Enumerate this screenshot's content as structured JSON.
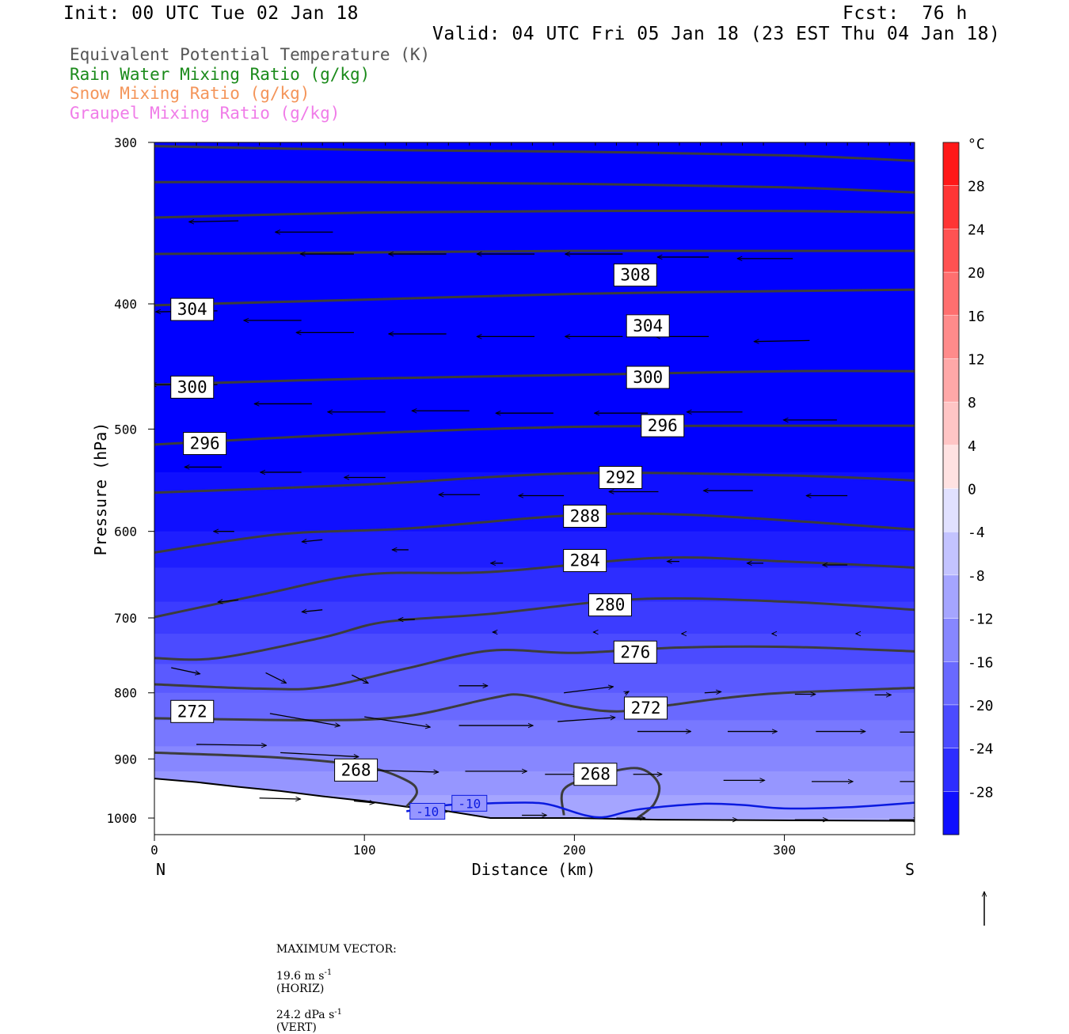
{
  "header": {
    "init": "Init: 00 UTC Tue 02 Jan 18",
    "fcst": "Fcst:  76 h",
    "valid": "Valid: 04 UTC Fri 05 Jan 18 (23 EST Thu 04 Jan 18)"
  },
  "legend_lines": [
    {
      "text": "Equivalent Potential Temperature (K)",
      "color": "#555555"
    },
    {
      "text": "Rain Water Mixing Ratio (g/kg)",
      "color": "#1a8a1a"
    },
    {
      "text": "Snow Mixing Ratio (g/kg)",
      "color": "#f4955a"
    },
    {
      "text": "Graupel Mixing Ratio (g/kg)",
      "color": "#f07ce8"
    }
  ],
  "footer": {
    "max_label": "MAXIMUM VECTOR:",
    "horiz": "19.6 m s",
    "horiz_tag": "(HORIZ)",
    "vert": "24.2 dPa s",
    "vert_tag": "(VERT)",
    "exp": "-1"
  },
  "chart_data": {
    "type": "heatmap",
    "xlabel": "Distance (km)",
    "ylabel": "Pressure (hPa)",
    "xlim": [
      0,
      362
    ],
    "ylim": [
      1030,
      300
    ],
    "y_scale": "log",
    "x_ticks": [
      0,
      100,
      200,
      300
    ],
    "y_ticks": [
      300,
      400,
      500,
      600,
      700,
      800,
      900,
      1000
    ],
    "x_end_labels": {
      "left": "N",
      "right": "S"
    },
    "colorbar": {
      "unit": "°C",
      "min": -32,
      "max": 32,
      "step": 4,
      "tick_values": [
        28,
        24,
        20,
        16,
        12,
        8,
        4,
        0,
        -4,
        -8,
        -12,
        -16,
        -20,
        -24,
        -28
      ]
    },
    "temperature_fill": [
      {
        "p": 300,
        "t": -32
      },
      {
        "p": 500,
        "t": -32
      },
      {
        "p": 540,
        "t": -30
      },
      {
        "p": 600,
        "t": -28
      },
      {
        "p": 640,
        "t": -26
      },
      {
        "p": 680,
        "t": -24
      },
      {
        "p": 720,
        "t": -22
      },
      {
        "p": 760,
        "t": -20
      },
      {
        "p": 800,
        "t": -18
      },
      {
        "p": 840,
        "t": -16
      },
      {
        "p": 880,
        "t": -14
      },
      {
        "p": 920,
        "t": -12
      },
      {
        "p": 960,
        "t": -10
      },
      {
        "p": 1000,
        "t": -9
      }
    ],
    "theta_e_contours": [
      {
        "level": 312,
        "points": [
          [
            0,
            302
          ],
          [
            100,
            304
          ],
          [
            200,
            305
          ],
          [
            300,
            307
          ],
          [
            362,
            310
          ]
        ]
      },
      {
        "level": 310,
        "points": [
          [
            0,
            322
          ],
          [
            100,
            322
          ],
          [
            200,
            323
          ],
          [
            300,
            325
          ],
          [
            362,
            328
          ]
        ]
      },
      {
        "level": 308,
        "points": [
          [
            0,
            343
          ],
          [
            100,
            340
          ],
          [
            200,
            339
          ],
          [
            300,
            339
          ],
          [
            362,
            340
          ]
        ]
      },
      {
        "level": 306,
        "points": [
          [
            0,
            366
          ],
          [
            100,
            365
          ],
          [
            200,
            364
          ],
          [
            300,
            364
          ],
          [
            362,
            364
          ]
        ]
      },
      {
        "level": 304,
        "points": [
          [
            0,
            401
          ],
          [
            100,
            397
          ],
          [
            200,
            393
          ],
          [
            300,
            391
          ],
          [
            362,
            390
          ]
        ]
      },
      {
        "level": 300,
        "points": [
          [
            0,
            462
          ],
          [
            100,
            457
          ],
          [
            200,
            454
          ],
          [
            300,
            451
          ],
          [
            362,
            451
          ]
        ]
      },
      {
        "level": 296,
        "points": [
          [
            0,
            514
          ],
          [
            100,
            504
          ],
          [
            200,
            498
          ],
          [
            300,
            497
          ],
          [
            362,
            497
          ]
        ]
      },
      {
        "level": 292,
        "points": [
          [
            0,
            560
          ],
          [
            100,
            552
          ],
          [
            200,
            541
          ],
          [
            300,
            543
          ],
          [
            362,
            548
          ]
        ]
      },
      {
        "level": 288,
        "points": [
          [
            0,
            623
          ],
          [
            60,
            603
          ],
          [
            120,
            597
          ],
          [
            200,
            583
          ],
          [
            260,
            583
          ],
          [
            362,
            598
          ]
        ]
      },
      {
        "level": 284,
        "points": [
          [
            0,
            699
          ],
          [
            50,
            672
          ],
          [
            100,
            648
          ],
          [
            160,
            645
          ],
          [
            240,
            629
          ],
          [
            300,
            633
          ],
          [
            362,
            640
          ]
        ]
      },
      {
        "level": 280,
        "points": [
          [
            0,
            752
          ],
          [
            30,
            752
          ],
          [
            80,
            725
          ],
          [
            110,
            705
          ],
          [
            160,
            695
          ],
          [
            230,
            677
          ],
          [
            300,
            680
          ],
          [
            362,
            690
          ]
        ]
      },
      {
        "level": 276,
        "points": [
          [
            0,
            788
          ],
          [
            50,
            794
          ],
          [
            80,
            792
          ],
          [
            120,
            766
          ],
          [
            160,
            742
          ],
          [
            200,
            745
          ],
          [
            250,
            738
          ],
          [
            300,
            737
          ],
          [
            362,
            743
          ]
        ]
      },
      {
        "level": 272,
        "points": [
          [
            0,
            837
          ],
          [
            80,
            840
          ],
          [
            120,
            834
          ],
          [
            160,
            808
          ],
          [
            175,
            803
          ],
          [
            200,
            820
          ],
          [
            220,
            827
          ],
          [
            240,
            820
          ],
          [
            270,
            808
          ],
          [
            300,
            800
          ],
          [
            362,
            793
          ]
        ]
      },
      {
        "level": 268,
        "points": [
          [
            0,
            890
          ],
          [
            60,
            898
          ],
          [
            100,
            912
          ],
          [
            120,
            935
          ],
          [
            125,
            955
          ],
          [
            120,
            980
          ]
        ]
      },
      {
        "level": 268,
        "points": [
          [
            195,
            995
          ],
          [
            195,
            950
          ],
          [
            210,
            928
          ],
          [
            230,
            915
          ],
          [
            240,
            940
          ],
          [
            238,
            975
          ],
          [
            230,
            1000
          ]
        ]
      }
    ],
    "contour_labels": [
      {
        "text": "308",
        "x": 229,
        "p": 380
      },
      {
        "text": "304",
        "x": 18,
        "p": 404
      },
      {
        "text": "304",
        "x": 235,
        "p": 416
      },
      {
        "text": "300",
        "x": 18,
        "p": 464
      },
      {
        "text": "300",
        "x": 235,
        "p": 456
      },
      {
        "text": "296",
        "x": 24,
        "p": 513
      },
      {
        "text": "296",
        "x": 242,
        "p": 497
      },
      {
        "text": "292",
        "x": 222,
        "p": 545
      },
      {
        "text": "288",
        "x": 205,
        "p": 584
      },
      {
        "text": "284",
        "x": 205,
        "p": 632
      },
      {
        "text": "280",
        "x": 217,
        "p": 684
      },
      {
        "text": "276",
        "x": 229,
        "p": 744
      },
      {
        "text": "272",
        "x": 18,
        "p": 827
      },
      {
        "text": "272",
        "x": 234,
        "p": 822
      },
      {
        "text": "268",
        "x": 96,
        "p": 918
      },
      {
        "text": "268",
        "x": 210,
        "p": 925
      }
    ],
    "isotherm": {
      "level": -10,
      "points": [
        [
          120,
          988
        ],
        [
          140,
          977
        ],
        [
          160,
          974
        ],
        [
          180,
          973
        ],
        [
          190,
          978
        ],
        [
          205,
          995
        ],
        [
          215,
          998
        ],
        [
          230,
          985
        ],
        [
          260,
          975
        ],
        [
          280,
          977
        ],
        [
          300,
          983
        ],
        [
          330,
          981
        ],
        [
          362,
          973
        ]
      ],
      "labels": [
        {
          "text": "-10",
          "x": 130,
          "p": 988
        },
        {
          "text": "-10",
          "x": 150,
          "p": 974
        }
      ]
    },
    "terrain_surface": [
      [
        0,
        932
      ],
      [
        20,
        938
      ],
      [
        40,
        946
      ],
      [
        60,
        953
      ],
      [
        80,
        962
      ],
      [
        100,
        970
      ],
      [
        120,
        980
      ],
      [
        140,
        988
      ],
      [
        160,
        1000
      ],
      [
        200,
        1000
      ],
      [
        240,
        1003
      ],
      [
        300,
        1004
      ],
      [
        362,
        1005
      ]
    ],
    "wind_vectors": [
      {
        "x": 40,
        "p": 345,
        "u": -24,
        "v": 0.5
      },
      {
        "x": 85,
        "p": 352,
        "u": -28,
        "v": 0
      },
      {
        "x": 95,
        "p": 366,
        "u": -26,
        "v": 0
      },
      {
        "x": 139,
        "p": 366,
        "u": -28,
        "v": 0
      },
      {
        "x": 181,
        "p": 366,
        "u": -28,
        "v": 0
      },
      {
        "x": 223,
        "p": 366,
        "u": -28,
        "v": 0
      },
      {
        "x": 264,
        "p": 368,
        "u": -25,
        "v": 0
      },
      {
        "x": 304,
        "p": 369,
        "u": -27,
        "v": 0
      },
      {
        "x": 30,
        "p": 405,
        "u": -30,
        "v": 0.5
      },
      {
        "x": 70,
        "p": 412,
        "u": -28,
        "v": 0
      },
      {
        "x": 95,
        "p": 421,
        "u": -28,
        "v": 0
      },
      {
        "x": 139,
        "p": 422,
        "u": -28,
        "v": 0
      },
      {
        "x": 181,
        "p": 424,
        "u": -28,
        "v": 0
      },
      {
        "x": 223,
        "p": 424,
        "u": -28,
        "v": 0
      },
      {
        "x": 264,
        "p": 424,
        "u": -26,
        "v": 0
      },
      {
        "x": 312,
        "p": 427,
        "u": -27,
        "v": 0.5
      },
      {
        "x": 30,
        "p": 462,
        "u": -32,
        "v": 0
      },
      {
        "x": 75,
        "p": 478,
        "u": -28,
        "v": 0
      },
      {
        "x": 110,
        "p": 485,
        "u": -28,
        "v": 0
      },
      {
        "x": 150,
        "p": 484,
        "u": -28,
        "v": 0
      },
      {
        "x": 190,
        "p": 486,
        "u": -28,
        "v": 0
      },
      {
        "x": 235,
        "p": 486,
        "u": -26,
        "v": 0
      },
      {
        "x": 280,
        "p": 485,
        "u": -27,
        "v": 0
      },
      {
        "x": 325,
        "p": 492,
        "u": -26,
        "v": 0
      },
      {
        "x": 32,
        "p": 535,
        "u": -18,
        "v": 0
      },
      {
        "x": 70,
        "p": 540,
        "u": -20,
        "v": 0
      },
      {
        "x": 110,
        "p": 545,
        "u": -20,
        "v": 0
      },
      {
        "x": 155,
        "p": 562,
        "u": -20,
        "v": 0
      },
      {
        "x": 195,
        "p": 563,
        "u": -22,
        "v": 0
      },
      {
        "x": 240,
        "p": 559,
        "u": -24,
        "v": 0
      },
      {
        "x": 285,
        "p": 558,
        "u": -24,
        "v": 0
      },
      {
        "x": 330,
        "p": 563,
        "u": -20,
        "v": 0
      },
      {
        "x": 38,
        "p": 600,
        "u": -10,
        "v": 0
      },
      {
        "x": 80,
        "p": 609,
        "u": -10,
        "v": 1
      },
      {
        "x": 121,
        "p": 620,
        "u": -8,
        "v": 0
      },
      {
        "x": 166,
        "p": 635,
        "u": -6,
        "v": 0
      },
      {
        "x": 210,
        "p": 635,
        "u": -8,
        "v": 0
      },
      {
        "x": 250,
        "p": 633,
        "u": -6,
        "v": 0
      },
      {
        "x": 290,
        "p": 635,
        "u": -8,
        "v": 0
      },
      {
        "x": 330,
        "p": 637,
        "u": -12,
        "v": 0
      },
      {
        "x": 40,
        "p": 678,
        "u": -10,
        "v": 1
      },
      {
        "x": 80,
        "p": 690,
        "u": -10,
        "v": 1
      },
      {
        "x": 124,
        "p": 702,
        "u": -8,
        "v": 0
      },
      {
        "x": 163,
        "p": 718,
        "u": -2,
        "v": 0
      },
      {
        "x": 210,
        "p": 718,
        "u": -1,
        "v": 0
      },
      {
        "x": 252,
        "p": 720,
        "u": -1,
        "v": 0
      },
      {
        "x": 295,
        "p": 720,
        "u": -1,
        "v": 0
      },
      {
        "x": 335,
        "p": 720,
        "u": -1,
        "v": 0
      },
      {
        "x": 8,
        "p": 765,
        "u": 14,
        "v": 3
      },
      {
        "x": 53,
        "p": 772,
        "u": 10,
        "v": 5
      },
      {
        "x": 94,
        "p": 775,
        "u": 8,
        "v": 4
      },
      {
        "x": 145,
        "p": 790,
        "u": 14,
        "v": 0
      },
      {
        "x": 195,
        "p": 800,
        "u": 24,
        "v": -3
      },
      {
        "x": 224,
        "p": 801,
        "u": 2,
        "v": -1
      },
      {
        "x": 262,
        "p": 800,
        "u": 8,
        "v": -0.5
      },
      {
        "x": 305,
        "p": 802,
        "u": 10,
        "v": 0
      },
      {
        "x": 343,
        "p": 803,
        "u": 8,
        "v": 0
      },
      {
        "x": 55,
        "p": 830,
        "u": 34,
        "v": 6
      },
      {
        "x": 100,
        "p": 835,
        "u": 32,
        "v": 5
      },
      {
        "x": 145,
        "p": 848,
        "u": 36,
        "v": 0
      },
      {
        "x": 192,
        "p": 842,
        "u": 28,
        "v": -2
      },
      {
        "x": 230,
        "p": 857,
        "u": 26,
        "v": 0
      },
      {
        "x": 273,
        "p": 857,
        "u": 24,
        "v": 0
      },
      {
        "x": 315,
        "p": 857,
        "u": 24,
        "v": 0
      },
      {
        "x": 355,
        "p": 858,
        "u": 16,
        "v": 0
      },
      {
        "x": 20,
        "p": 877,
        "u": 34,
        "v": 0.5
      },
      {
        "x": 60,
        "p": 890,
        "u": 38,
        "v": 2
      },
      {
        "x": 100,
        "p": 918,
        "u": 36,
        "v": 1
      },
      {
        "x": 148,
        "p": 920,
        "u": 30,
        "v": 0
      },
      {
        "x": 186,
        "p": 925,
        "u": 16,
        "v": 0
      },
      {
        "x": 228,
        "p": 925,
        "u": 14,
        "v": 0
      },
      {
        "x": 271,
        "p": 935,
        "u": 20,
        "v": 0
      },
      {
        "x": 313,
        "p": 937,
        "u": 20,
        "v": 0
      },
      {
        "x": 355,
        "p": 937,
        "u": 16,
        "v": 0
      },
      {
        "x": 50,
        "p": 965,
        "u": 20,
        "v": 0.5
      },
      {
        "x": 95,
        "p": 970,
        "u": 10,
        "v": 1
      },
      {
        "x": 130,
        "p": 985,
        "u": 10,
        "v": 1
      },
      {
        "x": 175,
        "p": 995,
        "u": 12,
        "v": 0
      },
      {
        "x": 220,
        "p": 1000,
        "u": 14,
        "v": 0
      },
      {
        "x": 262,
        "p": 1003,
        "u": 16,
        "v": 0
      },
      {
        "x": 305,
        "p": 1003,
        "u": 16,
        "v": 0
      },
      {
        "x": 350,
        "p": 1003,
        "u": 14,
        "v": 0
      }
    ]
  }
}
